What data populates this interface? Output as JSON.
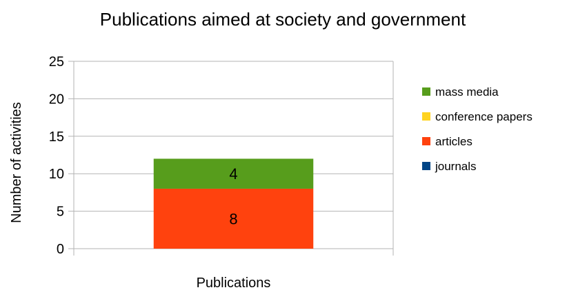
{
  "chart_data": {
    "type": "bar",
    "stacked": true,
    "title": "Publications aimed at society and government",
    "xlabel": "",
    "ylabel": "Number of activities",
    "categories": [
      "Publications"
    ],
    "ylim": [
      0,
      25
    ],
    "yticks": [
      0,
      5,
      10,
      15,
      20,
      25
    ],
    "grid": true,
    "legend_position": "right",
    "series": [
      {
        "name": "journals",
        "values": [
          0
        ],
        "color": "#004586"
      },
      {
        "name": "articles",
        "values": [
          8
        ],
        "color": "#ff420e"
      },
      {
        "name": "conference papers",
        "values": [
          0
        ],
        "color": "#ffd320"
      },
      {
        "name": "mass media",
        "values": [
          4
        ],
        "color": "#579d1c"
      }
    ],
    "legend_order": [
      "mass media",
      "conference papers",
      "articles",
      "journals"
    ],
    "data_labels": true
  }
}
